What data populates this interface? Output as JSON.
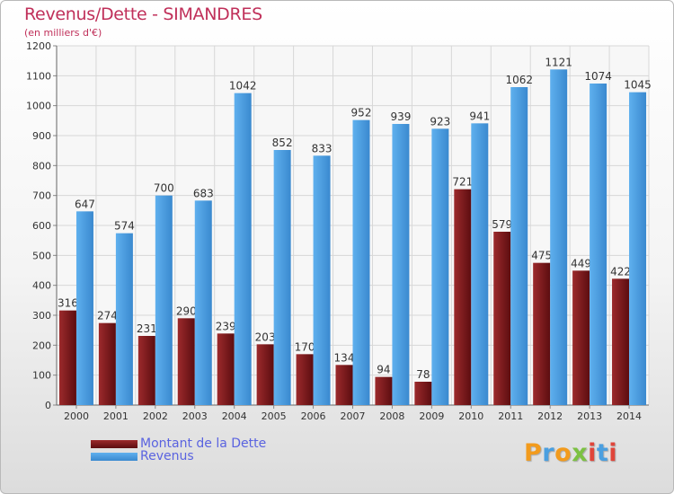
{
  "chart_data": {
    "type": "bar",
    "title": "Revenus/Dette - SIMANDRES",
    "subtitle": "(en milliers d'€)",
    "categories": [
      "2000",
      "2001",
      "2002",
      "2003",
      "2004",
      "2005",
      "2006",
      "2007",
      "2008",
      "2009",
      "2010",
      "2011",
      "2012",
      "2013",
      "2014"
    ],
    "series": [
      {
        "name": "Montant de la Dette",
        "color": "#7a1518",
        "values": [
          316,
          274,
          231,
          290,
          239,
          203,
          170,
          134,
          94,
          78,
          721,
          579,
          475,
          449,
          422
        ]
      },
      {
        "name": "Revenus",
        "color": "#4f9fdf",
        "values": [
          647,
          574,
          700,
          683,
          1042,
          852,
          833,
          952,
          939,
          923,
          941,
          1062,
          1121,
          1074,
          1045
        ]
      }
    ],
    "ylim": [
      0,
      1200
    ],
    "yticks": [
      0,
      100,
      200,
      300,
      400,
      500,
      600,
      700,
      800,
      900,
      1000,
      1100,
      1200
    ],
    "grid": true,
    "legend_position": "bottom-left"
  },
  "logo": {
    "text": "Proxiti",
    "letters": [
      "P",
      "r",
      "o",
      "x",
      "i",
      "t",
      "i"
    ],
    "colors": [
      "#f29b1d",
      "#4a9fe0",
      "#f29b1d",
      "#7cc142",
      "#e0453a",
      "#4a9fe0",
      "#e0453a"
    ]
  }
}
